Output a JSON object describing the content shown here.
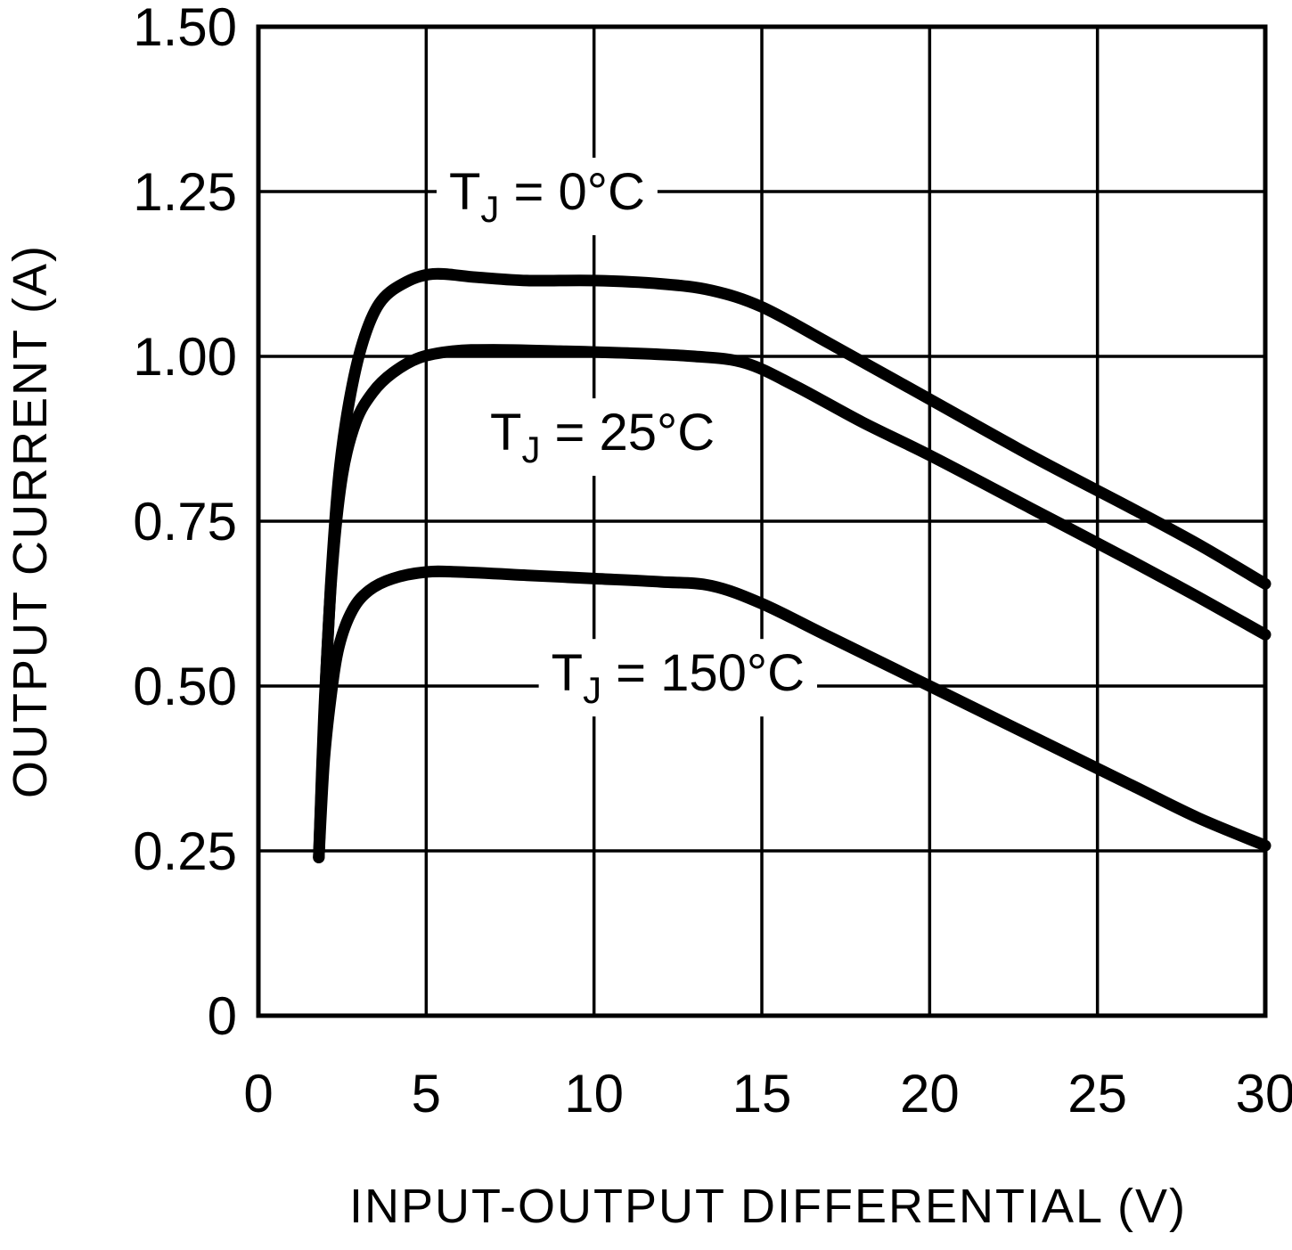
{
  "chart_data": {
    "type": "line",
    "title": "",
    "xlabel": "INPUT-OUTPUT DIFFERENTIAL (V)",
    "ylabel": "OUTPUT CURRENT (A)",
    "xlim": [
      0,
      30
    ],
    "ylim": [
      0,
      1.5
    ],
    "xticks": [
      "0",
      "5",
      "10",
      "15",
      "20",
      "25",
      "30"
    ],
    "yticks": [
      "0",
      "0.25",
      "0.50",
      "0.75",
      "1.00",
      "1.25",
      "1.50"
    ],
    "grid": true,
    "legend_position": "inline-labels",
    "line_color": "#000000",
    "background_color": "#ffffff",
    "series": [
      {
        "name": "TJ = 0°C",
        "label_pre": "T",
        "label_sub": "J",
        "label_post": " = 0°C",
        "label_pos": [
          8.6,
          1.25
        ],
        "points": [
          [
            1.8,
            0.24
          ],
          [
            1.95,
            0.45
          ],
          [
            2.15,
            0.65
          ],
          [
            2.4,
            0.82
          ],
          [
            2.7,
            0.93
          ],
          [
            3.1,
            1.02
          ],
          [
            3.6,
            1.08
          ],
          [
            4.3,
            1.11
          ],
          [
            5.2,
            1.125
          ],
          [
            6.5,
            1.12
          ],
          [
            8,
            1.115
          ],
          [
            10,
            1.115
          ],
          [
            12,
            1.11
          ],
          [
            13.5,
            1.1
          ],
          [
            15,
            1.075
          ],
          [
            17,
            1.02
          ],
          [
            20,
            0.935
          ],
          [
            23,
            0.85
          ],
          [
            26,
            0.77
          ],
          [
            28,
            0.715
          ],
          [
            30,
            0.655
          ]
        ]
      },
      {
        "name": "TJ = 25°C",
        "label_pre": "T",
        "label_sub": "J",
        "label_post": " = 25°C",
        "label_pos": [
          10.25,
          0.885
        ],
        "points": [
          [
            1.8,
            0.24
          ],
          [
            2.0,
            0.5
          ],
          [
            2.2,
            0.68
          ],
          [
            2.5,
            0.82
          ],
          [
            2.9,
            0.9
          ],
          [
            3.4,
            0.945
          ],
          [
            4.0,
            0.975
          ],
          [
            4.8,
            0.998
          ],
          [
            5.8,
            1.008
          ],
          [
            7,
            1.01
          ],
          [
            9,
            1.008
          ],
          [
            11,
            1.005
          ],
          [
            13,
            1.0
          ],
          [
            14.5,
            0.99
          ],
          [
            16,
            0.955
          ],
          [
            18,
            0.9
          ],
          [
            20,
            0.85
          ],
          [
            23,
            0.77
          ],
          [
            26,
            0.69
          ],
          [
            28,
            0.635
          ],
          [
            30,
            0.578
          ]
        ]
      },
      {
        "name": "TJ = 150°C",
        "label_pre": "T",
        "label_sub": "J",
        "label_post": " = 150°C",
        "label_pos": [
          12.5,
          0.52
        ],
        "points": [
          [
            1.8,
            0.24
          ],
          [
            1.95,
            0.38
          ],
          [
            2.15,
            0.48
          ],
          [
            2.4,
            0.56
          ],
          [
            2.8,
            0.615
          ],
          [
            3.3,
            0.645
          ],
          [
            4.0,
            0.663
          ],
          [
            5.0,
            0.673
          ],
          [
            6.0,
            0.673
          ],
          [
            8,
            0.668
          ],
          [
            10,
            0.663
          ],
          [
            12,
            0.658
          ],
          [
            13.5,
            0.652
          ],
          [
            15,
            0.625
          ],
          [
            17,
            0.575
          ],
          [
            20,
            0.5
          ],
          [
            23,
            0.425
          ],
          [
            26,
            0.35
          ],
          [
            28,
            0.3
          ],
          [
            30,
            0.258
          ]
        ]
      }
    ]
  }
}
